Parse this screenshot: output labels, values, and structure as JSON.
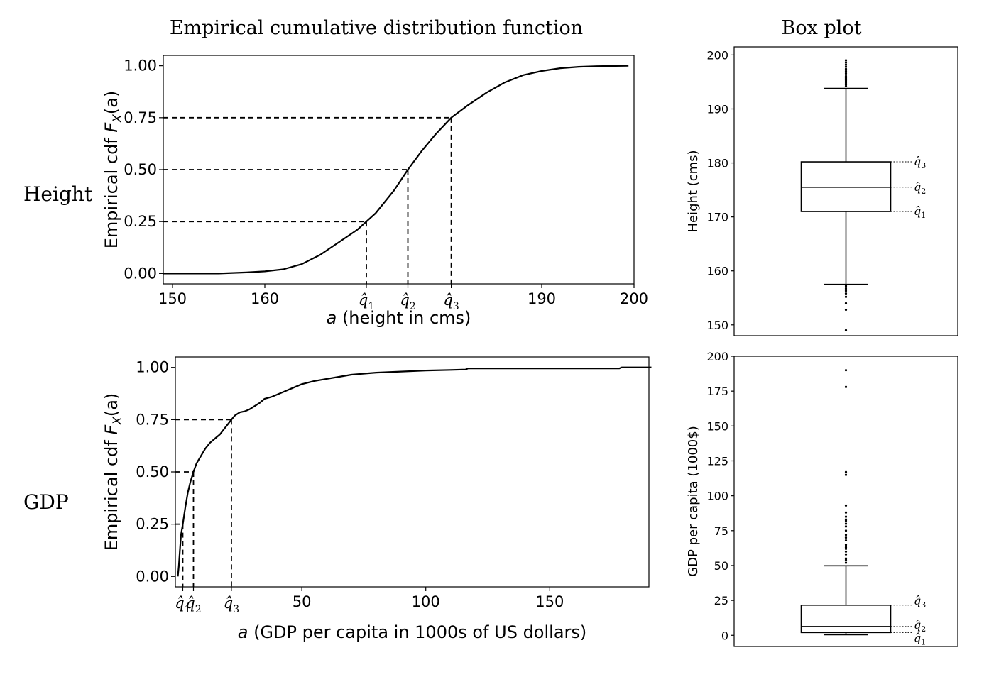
{
  "headers": {
    "ecdf": "Empirical cumulative distribution function",
    "box": "Box plot"
  },
  "rows": {
    "height": "Height",
    "gdp": "GDP"
  },
  "chart_data": [
    {
      "type": "line",
      "subtype": "ecdf",
      "row": "Height",
      "xlabel_italic": "a",
      "xlabel_rest": " (height in cms)",
      "ylabel_main": "Empirical cdf ",
      "ylabel_F": "F",
      "ylabel_X": "X",
      "ylabel_arg": "(a)",
      "xlim": [
        149,
        200
      ],
      "ylim": [
        -0.05,
        1.05
      ],
      "xticks": [
        150,
        160,
        190,
        200
      ],
      "yticks": [
        0,
        0.25,
        0.5,
        0.75,
        1
      ],
      "ytick_labels": [
        "0.00",
        "0.25",
        "0.50",
        "0.75",
        "1.00"
      ],
      "quartiles": [
        171.0,
        175.5,
        180.2
      ],
      "quartile_labels": [
        "q̂1",
        "q̂2",
        "q̂3"
      ],
      "x": [
        149,
        155,
        158,
        160,
        162,
        164,
        166,
        168,
        170,
        171,
        172,
        174,
        175.5,
        177,
        178.5,
        180.2,
        182,
        184,
        186,
        188,
        190,
        192,
        194,
        196,
        198,
        199.4
      ],
      "y": [
        0.0,
        0.0,
        0.005,
        0.01,
        0.02,
        0.045,
        0.09,
        0.15,
        0.21,
        0.25,
        0.29,
        0.4,
        0.5,
        0.59,
        0.67,
        0.75,
        0.81,
        0.87,
        0.92,
        0.955,
        0.975,
        0.988,
        0.995,
        0.998,
        0.999,
        1.0
      ]
    },
    {
      "type": "line",
      "subtype": "ecdf",
      "row": "GDP",
      "xlabel_italic": "a",
      "xlabel_rest": " (GDP per capita in 1000s of US dollars)",
      "ylabel_main": "Empirical cdf ",
      "ylabel_F": "F",
      "ylabel_X": "X",
      "ylabel_arg": "(a)",
      "xlim": [
        -1,
        190
      ],
      "ylim": [
        -0.05,
        1.05
      ],
      "xticks": [
        50,
        100,
        150
      ],
      "yticks": [
        0,
        0.25,
        0.5,
        0.75,
        1
      ],
      "ytick_labels": [
        "0.00",
        "0.25",
        "0.50",
        "0.75",
        "1.00"
      ],
      "quartiles": [
        2.0,
        6.3,
        21.6
      ],
      "quartile_labels": [
        "q̂1",
        "q̂2",
        "q̂3"
      ],
      "x": [
        0.0,
        0.4,
        0.8,
        1.3,
        2.0,
        3.0,
        4.0,
        5.0,
        6.3,
        7.5,
        9.0,
        11,
        13,
        15,
        17,
        19,
        21.6,
        23,
        25,
        27,
        29,
        31,
        33,
        35,
        38,
        42,
        46,
        50,
        55,
        60,
        65,
        70,
        80,
        90,
        100,
        110,
        116,
        117,
        140,
        178,
        179,
        191
      ],
      "y": [
        0.0,
        0.05,
        0.12,
        0.2,
        0.25,
        0.33,
        0.4,
        0.45,
        0.5,
        0.54,
        0.57,
        0.61,
        0.64,
        0.66,
        0.68,
        0.71,
        0.75,
        0.77,
        0.785,
        0.79,
        0.8,
        0.815,
        0.83,
        0.85,
        0.86,
        0.88,
        0.9,
        0.92,
        0.935,
        0.945,
        0.955,
        0.965,
        0.975,
        0.98,
        0.985,
        0.988,
        0.99,
        0.995,
        0.995,
        0.995,
        1.0,
        1.0
      ]
    },
    {
      "type": "box",
      "row": "Height",
      "ylabel": "Height (cms)",
      "ylim": [
        148,
        201.5
      ],
      "yticks": [
        150,
        160,
        170,
        180,
        190,
        200
      ],
      "whisker_low": 157.5,
      "q1": 171.0,
      "median": 175.5,
      "q3": 180.2,
      "whisker_high": 193.8,
      "outliers": [
        149.0,
        152.8,
        154.0,
        155.2,
        155.8,
        156.3,
        156.7,
        157.0,
        157.2,
        194.2,
        194.5,
        194.8,
        195.0,
        195.2,
        195.4,
        195.6,
        195.8,
        196.0,
        196.3,
        196.6,
        197.0,
        197.4,
        197.8,
        198.2,
        198.6,
        199.0
      ],
      "quartile_labels": [
        "q̂3",
        "q̂2",
        "q̂1"
      ]
    },
    {
      "type": "box",
      "row": "GDP",
      "ylabel": "GDP per capita (1000$)",
      "ylim": [
        -8,
        200
      ],
      "yticks": [
        0,
        25,
        50,
        75,
        100,
        125,
        150,
        175,
        200
      ],
      "whisker_low": 0.4,
      "q1": 2.0,
      "median": 6.3,
      "q3": 21.6,
      "whisker_high": 49.8,
      "outliers": [
        52,
        54,
        55,
        58,
        60,
        62,
        63,
        64,
        65,
        68,
        70,
        72,
        75,
        78,
        80,
        82,
        83,
        85,
        88,
        93,
        115,
        117,
        178,
        190
      ],
      "quartile_labels": [
        "q̂3",
        "q̂2",
        "q̂1"
      ]
    }
  ]
}
